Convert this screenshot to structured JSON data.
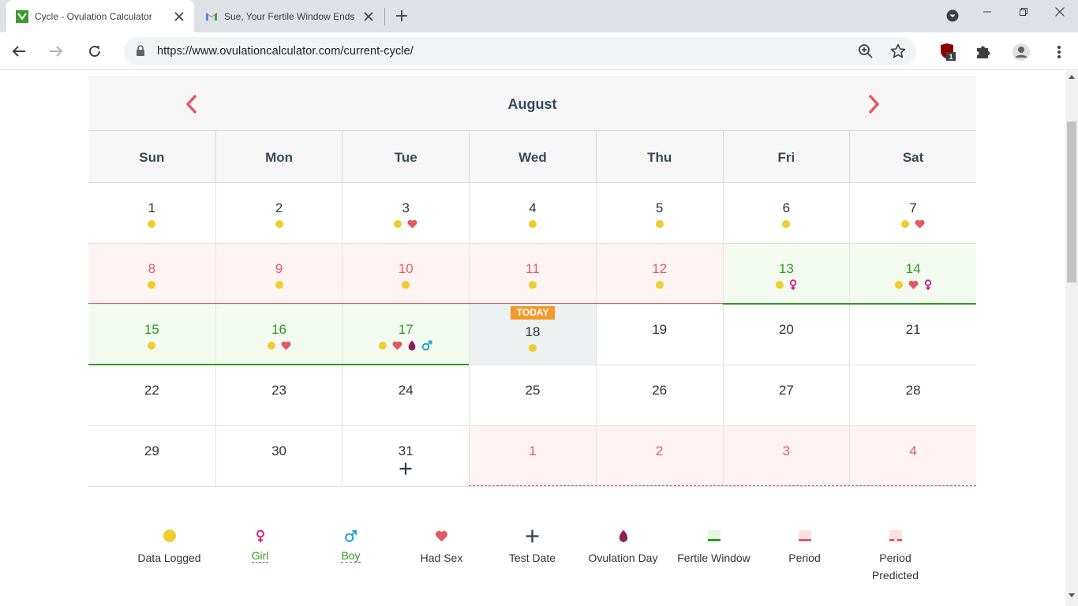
{
  "browser": {
    "tabs": [
      {
        "title": "Cycle - Ovulation Calculator",
        "active": true
      },
      {
        "title": "Sue, Your Fertile Window Ends",
        "active": false
      }
    ],
    "url": "https://www.ovulationcalculator.com/current-cycle/",
    "extension_badge": "1"
  },
  "calendar": {
    "month": "August",
    "weekdays": [
      "Sun",
      "Mon",
      "Tue",
      "Wed",
      "Thu",
      "Fri",
      "Sat"
    ],
    "today_label": "TODAY",
    "weeks": [
      [
        {
          "num": "1",
          "type": "normal",
          "icons": [
            "dot"
          ]
        },
        {
          "num": "2",
          "type": "normal",
          "icons": [
            "dot"
          ]
        },
        {
          "num": "3",
          "type": "normal",
          "icons": [
            "dot",
            "heart"
          ]
        },
        {
          "num": "4",
          "type": "normal",
          "icons": [
            "dot"
          ]
        },
        {
          "num": "5",
          "type": "normal",
          "icons": [
            "dot"
          ]
        },
        {
          "num": "6",
          "type": "normal",
          "icons": [
            "dot"
          ]
        },
        {
          "num": "7",
          "type": "normal",
          "icons": [
            "dot",
            "heart"
          ]
        }
      ],
      [
        {
          "num": "8",
          "type": "period",
          "icons": [
            "dot"
          ]
        },
        {
          "num": "9",
          "type": "period",
          "icons": [
            "dot"
          ]
        },
        {
          "num": "10",
          "type": "period",
          "icons": [
            "dot"
          ]
        },
        {
          "num": "11",
          "type": "period",
          "icons": [
            "dot"
          ]
        },
        {
          "num": "12",
          "type": "period",
          "icons": [
            "dot"
          ]
        },
        {
          "num": "13",
          "type": "fertile",
          "icons": [
            "dot",
            "girl"
          ]
        },
        {
          "num": "14",
          "type": "fertile",
          "icons": [
            "dot",
            "heart",
            "girl"
          ]
        }
      ],
      [
        {
          "num": "15",
          "type": "fertile",
          "icons": [
            "dot"
          ]
        },
        {
          "num": "16",
          "type": "fertile",
          "icons": [
            "dot",
            "heart"
          ]
        },
        {
          "num": "17",
          "type": "fertile",
          "icons": [
            "dot",
            "heart",
            "ovulation",
            "boy"
          ]
        },
        {
          "num": "18",
          "type": "today",
          "icons": [
            "dot"
          ]
        },
        {
          "num": "19",
          "type": "normal",
          "icons": []
        },
        {
          "num": "20",
          "type": "normal",
          "icons": []
        },
        {
          "num": "21",
          "type": "normal",
          "icons": []
        }
      ],
      [
        {
          "num": "22",
          "type": "normal",
          "icons": []
        },
        {
          "num": "23",
          "type": "normal",
          "icons": []
        },
        {
          "num": "24",
          "type": "normal",
          "icons": []
        },
        {
          "num": "25",
          "type": "normal",
          "icons": []
        },
        {
          "num": "26",
          "type": "normal",
          "icons": []
        },
        {
          "num": "27",
          "type": "normal",
          "icons": []
        },
        {
          "num": "28",
          "type": "normal",
          "icons": []
        }
      ],
      [
        {
          "num": "29",
          "type": "normal",
          "icons": []
        },
        {
          "num": "30",
          "type": "normal",
          "icons": []
        },
        {
          "num": "31",
          "type": "normal",
          "icons": [
            "plus"
          ]
        },
        {
          "num": "1",
          "type": "predicted",
          "icons": []
        },
        {
          "num": "2",
          "type": "predicted",
          "icons": []
        },
        {
          "num": "3",
          "type": "predicted",
          "icons": []
        },
        {
          "num": "4",
          "type": "predicted",
          "icons": []
        }
      ]
    ]
  },
  "legend": [
    {
      "icon": "data-logged-icon",
      "label": "Data Logged",
      "link": false
    },
    {
      "icon": "girl-icon",
      "label": "Girl",
      "link": true
    },
    {
      "icon": "boy-icon",
      "label": "Boy",
      "link": true
    },
    {
      "icon": "heart-icon",
      "label": "Had Sex",
      "link": false
    },
    {
      "icon": "plus-icon",
      "label": "Test Date",
      "link": false
    },
    {
      "icon": "ovulation-drop-icon",
      "label": "Ovulation Day",
      "link": false
    },
    {
      "icon": "fertile-window-icon",
      "label": "Fertile Window",
      "link": false
    },
    {
      "icon": "period-icon",
      "label": "Period",
      "link": false
    },
    {
      "icon": "period-predicted-icon",
      "label": "Period Predicted",
      "link": false
    }
  ],
  "colors": {
    "period": "#e05a63",
    "fertile": "#2e9a1d",
    "today_badge": "#f39a2a",
    "data_dot": "#f0cc2e",
    "girl": "#d8198a",
    "boy": "#1a9fd4",
    "ovulation": "#8b1e5f"
  }
}
